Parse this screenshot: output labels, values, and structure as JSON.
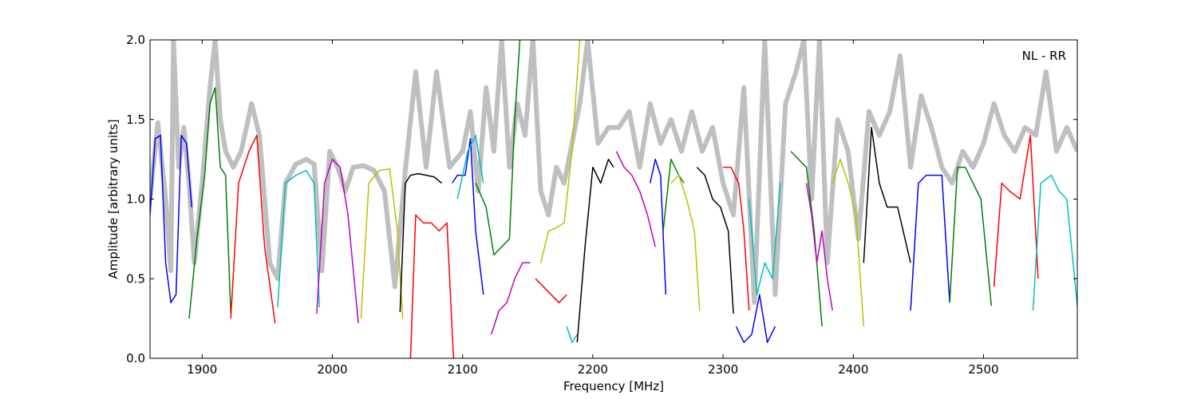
{
  "chart_data": {
    "type": "line",
    "title": "",
    "xlabel": "Frequency [MHz]",
    "ylabel": "Amplitude [arbitrary units]",
    "xlim": [
      1860,
      2572
    ],
    "ylim": [
      0.0,
      2.0
    ],
    "xticks": [
      1900,
      2000,
      2100,
      2200,
      2300,
      2400,
      2500
    ],
    "yticks": [
      0.0,
      0.5,
      1.0,
      1.5,
      2.0
    ],
    "xtick_labels": [
      "1900",
      "2000",
      "2100",
      "2200",
      "2300",
      "2400",
      "2500"
    ],
    "ytick_labels": [
      "0.0",
      "0.5",
      "1.0",
      "1.5",
      "2.0"
    ],
    "grid": false,
    "annotation": "NL - RR",
    "background": {
      "name": "reference",
      "color": "#bfbfbf",
      "x": [
        1860,
        1866,
        1872,
        1876,
        1878,
        1882,
        1886,
        1890,
        1894,
        1900,
        1906,
        1910,
        1914,
        1918,
        1924,
        1930,
        1938,
        1944,
        1952,
        1958,
        1964,
        1972,
        1980,
        1986,
        1992,
        1998,
        2004,
        2010,
        2016,
        2024,
        2032,
        2040,
        2048,
        2056,
        2064,
        2072,
        2080,
        2090,
        2100,
        2106,
        2112,
        2118,
        2124,
        2130,
        2136,
        2142,
        2148,
        2154,
        2160,
        2166,
        2172,
        2178,
        2184,
        2190,
        2196,
        2204,
        2212,
        2220,
        2228,
        2236,
        2244,
        2252,
        2260,
        2268,
        2276,
        2284,
        2292,
        2300,
        2308,
        2316,
        2324,
        2332,
        2340,
        2348,
        2356,
        2362,
        2368,
        2374,
        2380,
        2388,
        2396,
        2404,
        2412,
        2420,
        2428,
        2436,
        2444,
        2452,
        2460,
        2468,
        2476,
        2484,
        2492,
        2500,
        2508,
        2516,
        2524,
        2532,
        2540,
        2548,
        2556,
        2564,
        2572
      ],
      "y": [
        1.0,
        1.48,
        1.0,
        0.55,
        2.0,
        1.2,
        1.45,
        1.1,
        0.6,
        1.1,
        1.7,
        2.0,
        1.5,
        1.3,
        1.2,
        1.3,
        1.6,
        1.4,
        0.6,
        0.5,
        1.1,
        1.22,
        1.25,
        1.22,
        0.55,
        1.3,
        1.2,
        1.05,
        1.2,
        1.21,
        1.18,
        1.05,
        0.45,
        1.18,
        1.8,
        1.2,
        1.8,
        1.2,
        1.3,
        1.55,
        1.05,
        1.7,
        1.3,
        2.0,
        1.2,
        1.6,
        1.4,
        2.0,
        1.05,
        0.9,
        1.2,
        1.1,
        1.35,
        1.6,
        2.0,
        1.35,
        1.45,
        1.45,
        1.55,
        1.2,
        1.6,
        1.35,
        1.5,
        1.3,
        1.55,
        1.3,
        1.45,
        1.1,
        0.9,
        1.7,
        0.35,
        2.0,
        0.4,
        1.6,
        1.8,
        2.0,
        1.0,
        2.0,
        0.6,
        1.5,
        1.3,
        0.75,
        1.55,
        1.4,
        1.55,
        1.9,
        1.2,
        1.65,
        1.45,
        1.2,
        1.1,
        1.3,
        1.2,
        1.35,
        1.6,
        1.4,
        1.3,
        1.45,
        1.4,
        1.8,
        1.3,
        1.45,
        1.3
      ]
    },
    "series": [
      {
        "color": "#0000ff",
        "x": [
          1860,
          1864,
          1868,
          1872,
          1876,
          1880,
          1884,
          1888,
          1892
        ],
        "y": [
          0.9,
          1.38,
          1.4,
          0.6,
          0.35,
          0.4,
          1.4,
          1.35,
          0.95
        ]
      },
      {
        "color": "#007f00",
        "x": [
          1890,
          1896,
          1902,
          1906,
          1910,
          1914,
          1918,
          1922
        ],
        "y": [
          0.25,
          0.75,
          1.15,
          1.6,
          1.7,
          1.2,
          1.15,
          0.28
        ]
      },
      {
        "color": "#ff0000",
        "x": [
          1922,
          1928,
          1936,
          1942,
          1948,
          1956
        ],
        "y": [
          0.25,
          1.1,
          1.3,
          1.4,
          0.7,
          0.22
        ]
      },
      {
        "color": "#00bfbf",
        "x": [
          1958,
          1964,
          1972,
          1980,
          1986,
          1990
        ],
        "y": [
          0.32,
          1.1,
          1.15,
          1.18,
          1.1,
          0.32
        ]
      },
      {
        "color": "#bf00bf",
        "x": [
          1988,
          1994,
          2000,
          2006,
          2012,
          2020
        ],
        "y": [
          0.28,
          1.1,
          1.25,
          1.2,
          0.9,
          0.22
        ]
      },
      {
        "color": "#bfbf00",
        "x": [
          2022,
          2028,
          2036,
          2044,
          2050,
          2054
        ],
        "y": [
          0.25,
          1.1,
          1.18,
          1.19,
          0.8,
          0.25
        ]
      },
      {
        "color": "#000000",
        "x": [
          2052,
          2056,
          2060,
          2066,
          2072,
          2078,
          2084
        ],
        "y": [
          0.29,
          1.1,
          1.15,
          1.16,
          1.15,
          1.14,
          1.1
        ]
      },
      {
        "color": "#ff0000",
        "x": [
          2060,
          2064,
          2070,
          2076,
          2082,
          2088,
          2093
        ],
        "y": [
          0.0,
          0.9,
          0.85,
          0.85,
          0.8,
          0.85,
          0.0
        ]
      },
      {
        "color": "#0000ff",
        "x": [
          2092,
          2096,
          2102,
          2106,
          2110,
          2116
        ],
        "y": [
          1.1,
          1.15,
          1.15,
          1.38,
          0.8,
          0.4
        ]
      },
      {
        "color": "#00bfbf",
        "x": [
          2096,
          2104,
          2110,
          2116
        ],
        "y": [
          1.0,
          1.3,
          1.4,
          1.1
        ]
      },
      {
        "color": "#007f00",
        "x": [
          2110,
          2118,
          2124,
          2130,
          2136,
          2140,
          2144
        ],
        "y": [
          1.1,
          0.95,
          0.65,
          0.7,
          0.75,
          1.5,
          2.0
        ]
      },
      {
        "color": "#bf00bf",
        "x": [
          2122,
          2128,
          2134,
          2140,
          2146,
          2152
        ],
        "y": [
          0.15,
          0.3,
          0.35,
          0.5,
          0.6,
          0.6
        ]
      },
      {
        "color": "#ff0000",
        "x": [
          2156,
          2162,
          2168,
          2174,
          2180
        ],
        "y": [
          0.5,
          0.45,
          0.4,
          0.35,
          0.4
        ]
      },
      {
        "color": "#bfbf00",
        "x": [
          2160,
          2166,
          2172,
          2178,
          2184,
          2190
        ],
        "y": [
          0.6,
          0.8,
          0.82,
          0.85,
          1.3,
          2.0
        ]
      },
      {
        "color": "#00bfbf",
        "x": [
          2180,
          2184,
          2188
        ],
        "y": [
          0.2,
          0.1,
          0.15
        ]
      },
      {
        "color": "#000000",
        "x": [
          2188,
          2194,
          2200,
          2206,
          2212,
          2216
        ],
        "y": [
          0.1,
          0.7,
          1.2,
          1.1,
          1.25,
          1.2
        ]
      },
      {
        "color": "#bf00bf",
        "x": [
          2218,
          2224,
          2230,
          2236,
          2242,
          2248
        ],
        "y": [
          1.3,
          1.2,
          1.15,
          1.05,
          0.9,
          0.7
        ]
      },
      {
        "color": "#0000ff",
        "x": [
          2244,
          2248,
          2252,
          2256
        ],
        "y": [
          1.1,
          1.25,
          1.15,
          0.4
        ]
      },
      {
        "color": "#007f00",
        "x": [
          2254,
          2260,
          2266,
          2270
        ],
        "y": [
          0.8,
          1.25,
          1.15,
          1.1
        ]
      },
      {
        "color": "#bfbf00",
        "x": [
          2260,
          2266,
          2272,
          2278,
          2282
        ],
        "y": [
          1.1,
          1.15,
          1.0,
          0.8,
          0.3
        ]
      },
      {
        "color": "#000000",
        "x": [
          2280,
          2286,
          2292,
          2298,
          2304,
          2308
        ],
        "y": [
          1.2,
          1.15,
          1.0,
          0.95,
          0.8,
          0.28
        ]
      },
      {
        "color": "#ff0000",
        "x": [
          2300,
          2306,
          2312,
          2316,
          2320
        ],
        "y": [
          1.2,
          1.2,
          1.1,
          0.8,
          0.3
        ]
      },
      {
        "color": "#0000ff",
        "x": [
          2310,
          2316,
          2322,
          2328,
          2334,
          2340
        ],
        "y": [
          0.2,
          0.1,
          0.15,
          0.4,
          0.1,
          0.2
        ]
      },
      {
        "color": "#00bfbf",
        "x": [
          2320,
          2326,
          2332,
          2338,
          2344
        ],
        "y": [
          1.0,
          0.4,
          0.6,
          0.5,
          1.1
        ]
      },
      {
        "color": "#007f00",
        "x": [
          2352,
          2358,
          2364,
          2370,
          2376
        ],
        "y": [
          1.3,
          1.25,
          1.2,
          0.8,
          0.2
        ]
      },
      {
        "color": "#bf00bf",
        "x": [
          2364,
          2368,
          2372,
          2376,
          2380,
          2384
        ],
        "y": [
          1.1,
          0.9,
          0.6,
          0.8,
          0.5,
          0.3
        ]
      },
      {
        "color": "#bfbf00",
        "x": [
          2384,
          2390,
          2396,
          2402,
          2408
        ],
        "y": [
          1.1,
          1.25,
          1.1,
          0.9,
          0.2
        ]
      },
      {
        "color": "#000000",
        "x": [
          2408,
          2414,
          2420,
          2426,
          2434,
          2444
        ],
        "y": [
          0.6,
          1.45,
          1.1,
          0.95,
          0.95,
          0.6
        ]
      },
      {
        "color": "#0000ff",
        "x": [
          2444,
          2450,
          2456,
          2462,
          2468,
          2474
        ],
        "y": [
          0.3,
          1.1,
          1.15,
          1.15,
          1.15,
          0.35
        ]
      },
      {
        "color": "#007f00",
        "x": [
          2474,
          2480,
          2486,
          2492,
          2498,
          2506
        ],
        "y": [
          0.35,
          1.2,
          1.2,
          1.1,
          1.0,
          0.33
        ]
      },
      {
        "color": "#ff0000",
        "x": [
          2508,
          2514,
          2520,
          2528,
          2536,
          2542
        ],
        "y": [
          0.45,
          1.1,
          1.05,
          1.0,
          1.4,
          0.5
        ]
      },
      {
        "color": "#00bfbf",
        "x": [
          2538,
          2544,
          2552,
          2558,
          2564,
          2572
        ],
        "y": [
          0.3,
          1.1,
          1.15,
          1.05,
          1.0,
          0.33
        ]
      }
    ]
  }
}
